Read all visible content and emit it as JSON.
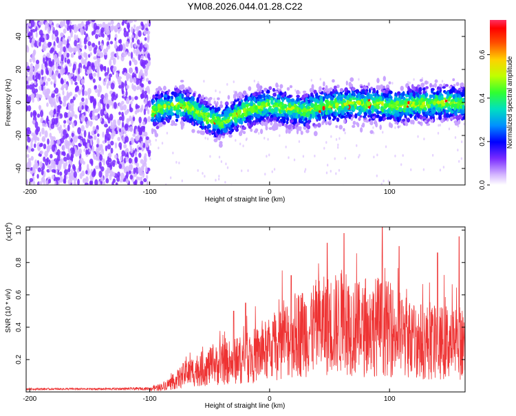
{
  "title": "YM08.2026.044.01.28.C22",
  "chart_data": [
    {
      "type": "heatmap",
      "xlabel": "Height of straight line (km)",
      "ylabel": "Frequency (Hz)",
      "xlim": [
        -203,
        163
      ],
      "ylim": [
        -50,
        50
      ],
      "xticks": [
        -200,
        -100,
        0,
        100
      ],
      "yticks": [
        -40,
        -20,
        0,
        20,
        40
      ],
      "signal_onset_km": -98,
      "noise_band_end_km": -100,
      "ridge_center_hz": [
        [
          -98,
          -6
        ],
        [
          -90,
          -3
        ],
        [
          -80,
          -2
        ],
        [
          -70,
          -2
        ],
        [
          -60,
          -6
        ],
        [
          -50,
          -10
        ],
        [
          -40,
          -12
        ],
        [
          -30,
          -8
        ],
        [
          -20,
          -5
        ],
        [
          -10,
          -3
        ],
        [
          0,
          -2
        ],
        [
          10,
          -3
        ],
        [
          20,
          -4
        ],
        [
          30,
          -5
        ],
        [
          40,
          -3
        ],
        [
          50,
          -2
        ],
        [
          60,
          -1
        ],
        [
          70,
          0
        ],
        [
          80,
          -1
        ],
        [
          90,
          -1
        ],
        [
          100,
          -2
        ],
        [
          110,
          -2
        ],
        [
          120,
          -1
        ],
        [
          130,
          -1
        ],
        [
          140,
          0
        ],
        [
          150,
          0
        ],
        [
          160,
          -1
        ]
      ],
      "colorbar": {
        "label": "Normalized spectral amplitude",
        "range": [
          0.0,
          0.76
        ],
        "ticks": [
          "0.0",
          "0.2",
          "0.4",
          "0.6"
        ]
      }
    },
    {
      "type": "line",
      "xlabel": "Height of straight line (km)",
      "ylabel": "SNR (10 * v/v)",
      "y_multiplier": "(x10",
      "y_multiplier_exp": "4",
      "y_multiplier_close": ")",
      "xlim": [
        -203,
        163
      ],
      "ylim": [
        0,
        1.02
      ],
      "xticks": [
        -200,
        -100,
        0,
        100
      ],
      "yticks": [
        "0.2",
        "0.4",
        "0.6",
        "0.8",
        "1.0"
      ],
      "series_color": "#ee3333",
      "envelope": [
        [
          -203,
          0.02
        ],
        [
          -180,
          0.02
        ],
        [
          -150,
          0.02
        ],
        [
          -120,
          0.025
        ],
        [
          -100,
          0.03
        ],
        [
          -90,
          0.05
        ],
        [
          -80,
          0.1
        ],
        [
          -70,
          0.18
        ],
        [
          -60,
          0.22
        ],
        [
          -50,
          0.25
        ],
        [
          -40,
          0.27
        ],
        [
          -30,
          0.3
        ],
        [
          -20,
          0.33
        ],
        [
          -10,
          0.37
        ],
        [
          0,
          0.42
        ],
        [
          10,
          0.5
        ],
        [
          20,
          0.56
        ],
        [
          30,
          0.6
        ],
        [
          40,
          0.64
        ],
        [
          50,
          0.66
        ],
        [
          60,
          0.68
        ],
        [
          70,
          0.64
        ],
        [
          80,
          0.6
        ],
        [
          90,
          0.66
        ],
        [
          100,
          0.62
        ],
        [
          110,
          0.56
        ],
        [
          120,
          0.52
        ],
        [
          130,
          0.5
        ],
        [
          140,
          0.48
        ],
        [
          150,
          0.5
        ],
        [
          163,
          0.48
        ]
      ],
      "peaks": [
        [
          62,
          0.98
        ],
        [
          94,
          1.02
        ],
        [
          18,
          0.72
        ],
        [
          48,
          0.92
        ],
        [
          108,
          0.9
        ],
        [
          140,
          0.86
        ],
        [
          158,
          0.96
        ],
        [
          -20,
          0.55
        ],
        [
          -30,
          0.5
        ]
      ]
    }
  ]
}
